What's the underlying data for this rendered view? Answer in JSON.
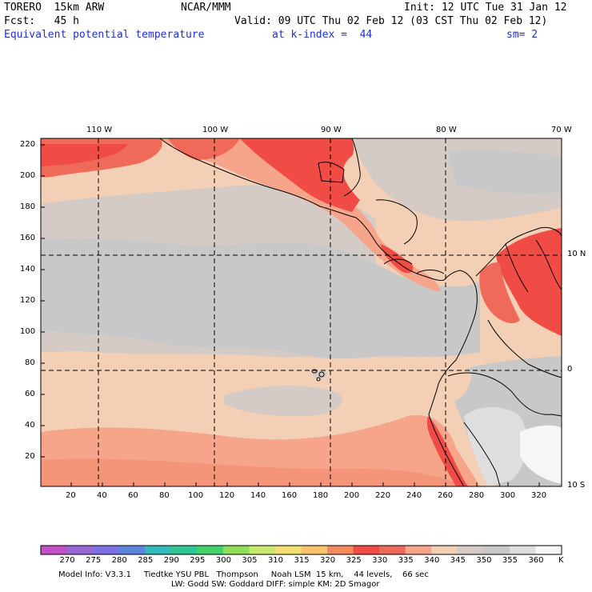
{
  "header": {
    "model": "TORERO  15km ARW",
    "org": "NCAR/MMM",
    "init": "Init: 12 UTC Tue 31 Jan 12",
    "fcst": "Fcst:   45 h",
    "valid": "Valid: 09 UTC Thu 02 Feb 12 (03 CST Thu 02 Feb 12)",
    "field": "Equivalent potential temperature",
    "level": "at k-index =  44",
    "smooth": "sm= 2"
  },
  "map": {
    "lon_labels": [
      "110 W",
      "100 W",
      "90 W",
      "80 W",
      "70 W"
    ],
    "lat_labels": [
      "10 N",
      "0",
      "10 S"
    ],
    "y_ticks": [
      "220",
      "200",
      "180",
      "160",
      "140",
      "120",
      "100",
      "80",
      "60",
      "40",
      "20"
    ],
    "x_ticks": [
      "20",
      "40",
      "60",
      "80",
      "100",
      "120",
      "140",
      "160",
      "180",
      "200",
      "220",
      "240",
      "260",
      "280",
      "300",
      "320"
    ]
  },
  "colorbar": {
    "labels": [
      "270",
      "275",
      "280",
      "285",
      "290",
      "295",
      "300",
      "305",
      "310",
      "315",
      "320",
      "325",
      "330",
      "335",
      "340",
      "345",
      "350",
      "355",
      "360"
    ],
    "unit": "K",
    "colors": [
      "#c44fc8",
      "#9a68d6",
      "#7f6fe6",
      "#5a86e0",
      "#2fbcbf",
      "#2fc894",
      "#44d36a",
      "#8ee05a",
      "#c9ea6a",
      "#f3df71",
      "#f9c46a",
      "#f78a5c",
      "#f04b45",
      "#f06a5a",
      "#f6a48a",
      "#f2cfb5",
      "#d4cbc7",
      "#c8c8c8",
      "#dedede",
      "#f6f6f6"
    ]
  },
  "footer": {
    "line1": "Model Info: V3.3.1     Tiedtke YSU PBL   Thompson     Noah LSM  15 km,    44 levels,    66 sec",
    "line2": "LW: Godd SW: Goddard DIFF: simple KM: 2D Smagor"
  }
}
